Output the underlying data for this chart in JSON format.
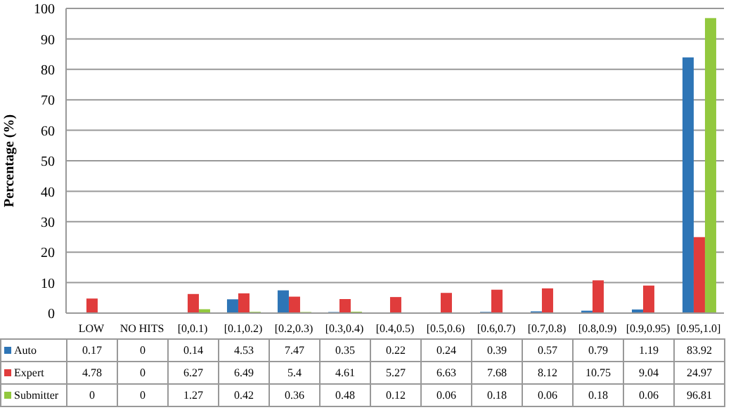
{
  "chart_data": {
    "type": "bar",
    "ylabel": "Percentage (%)",
    "categories": [
      "LOW",
      "NO HITS",
      "[0,0.1)",
      "[0.1,0.2)",
      "[0.2,0.3)",
      "[0.3,0.4)",
      "[0.4,0.5)",
      "[0.5,0.6)",
      "[0.6,0.7)",
      "[0.7,0.8)",
      "[0.8,0.9)",
      "[0.9,0.95)",
      "[0.95,1.0]"
    ],
    "series": [
      {
        "name": "Auto",
        "color": "#2e75b6",
        "values": [
          0.17,
          0,
          0.14,
          4.53,
          7.47,
          0.35,
          0.22,
          0.24,
          0.39,
          0.57,
          0.79,
          1.19,
          83.92
        ]
      },
      {
        "name": "Expert",
        "color": "#e03c3c",
        "values": [
          4.78,
          0,
          6.27,
          6.49,
          5.4,
          4.61,
          5.27,
          6.63,
          7.68,
          8.12,
          10.75,
          9.04,
          24.97
        ]
      },
      {
        "name": "Submitter",
        "color": "#92c83e",
        "values": [
          0,
          0,
          1.27,
          0.42,
          0.36,
          0.48,
          0.12,
          0.06,
          0.18,
          0.06,
          0.18,
          0.06,
          96.81
        ]
      }
    ],
    "ylim": [
      0,
      100
    ],
    "yticks": [
      0,
      10,
      20,
      30,
      40,
      50,
      60,
      70,
      80,
      90,
      100
    ],
    "grid": "y",
    "legend": "bottom",
    "data_labels": true
  }
}
